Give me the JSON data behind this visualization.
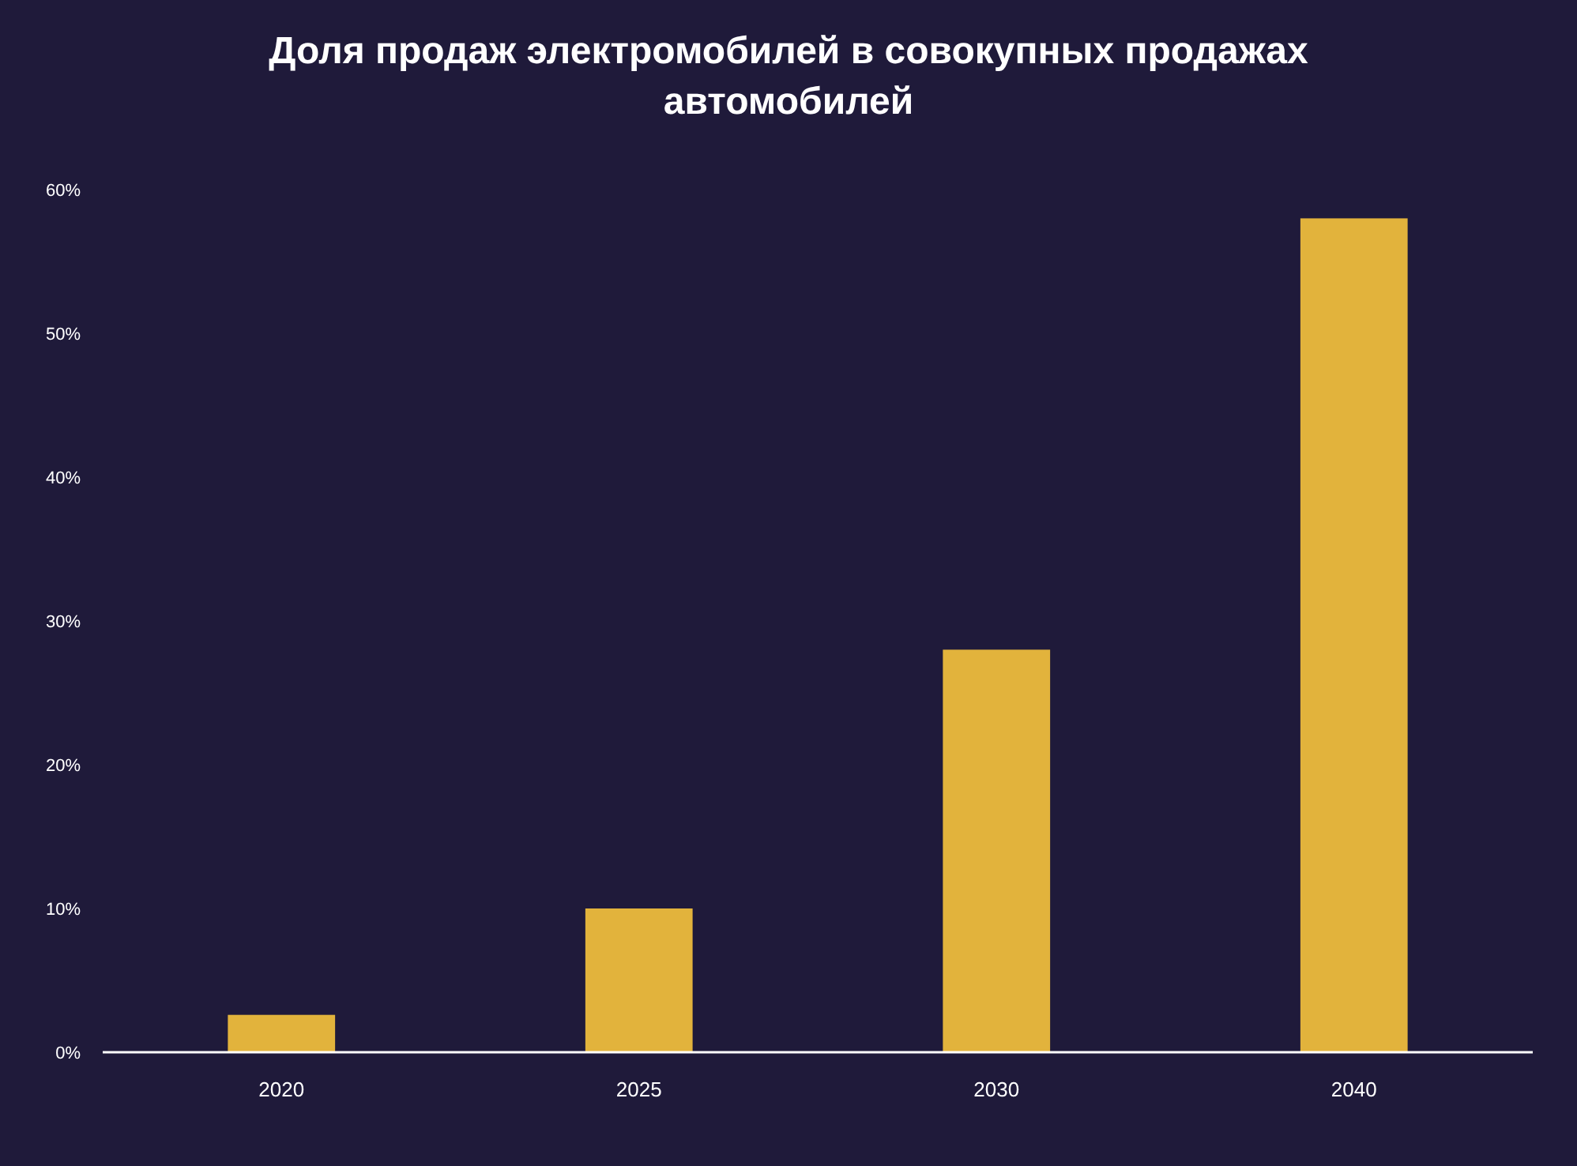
{
  "chart_data": {
    "type": "bar",
    "title": "Доля продаж электромобилей в совокупных продажах автомобилей",
    "categories": [
      "2020",
      "2025",
      "2030",
      "2040"
    ],
    "values": [
      2.6,
      10,
      28,
      58
    ],
    "color": "#e2b33c",
    "ylim": [
      0,
      60
    ],
    "yticks": [
      {
        "value": 0,
        "label": "0%"
      },
      {
        "value": 10,
        "label": "10%"
      },
      {
        "value": 20,
        "label": "20%"
      },
      {
        "value": 30,
        "label": "30%"
      },
      {
        "value": 40,
        "label": "40%"
      },
      {
        "value": 50,
        "label": "50%"
      },
      {
        "value": 60,
        "label": "60%"
      }
    ],
    "grid": false
  }
}
